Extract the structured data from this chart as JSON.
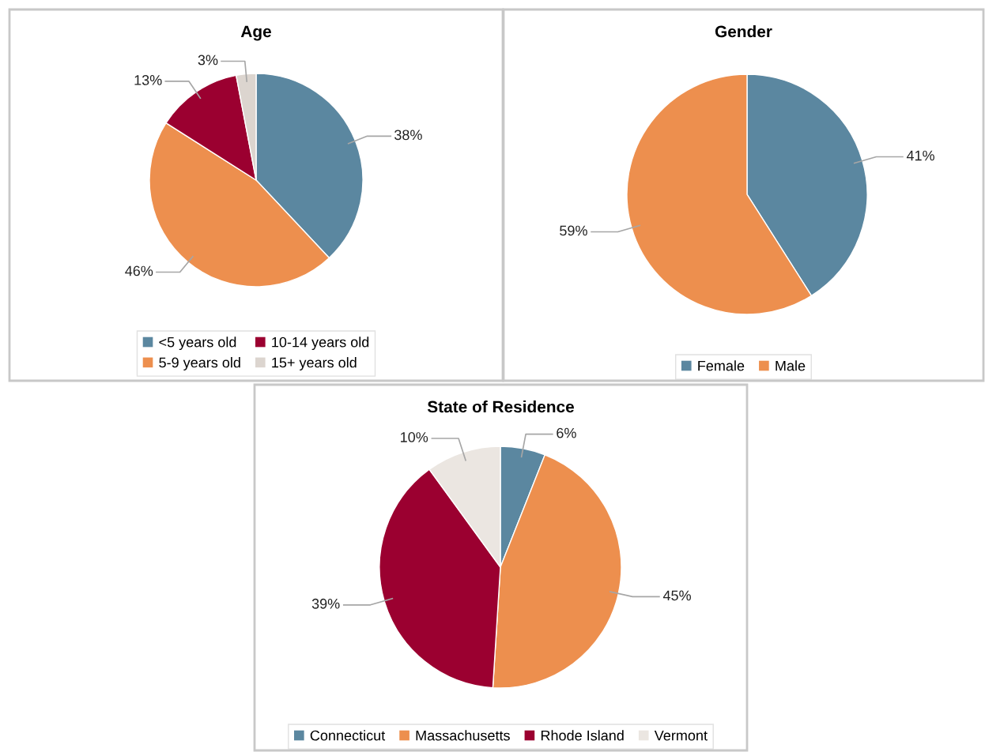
{
  "chart_data": [
    {
      "type": "pie",
      "title": "Age",
      "categories": [
        "<5 years old",
        "5-9 years old",
        "10-14 years old",
        "15+ years old"
      ],
      "values": [
        38,
        46,
        13,
        3
      ],
      "value_labels": [
        "38%",
        "46%",
        "13%",
        "3%"
      ],
      "colors": [
        "#5b87a0",
        "#ed8f4e",
        "#9b0030",
        "#dcd5cf"
      ],
      "legend": "bottom"
    },
    {
      "type": "pie",
      "title": "Gender",
      "categories": [
        "Female",
        "Male"
      ],
      "values": [
        41,
        59
      ],
      "value_labels": [
        "41%",
        "59%"
      ],
      "colors": [
        "#5b87a0",
        "#ed8f4e"
      ],
      "legend": "bottom"
    },
    {
      "type": "pie",
      "title": "State of Residence",
      "categories": [
        "Connecticut",
        "Massachusetts",
        "Rhode Island",
        "Vermont"
      ],
      "values": [
        6,
        45,
        39,
        10
      ],
      "value_labels": [
        "6%",
        "45%",
        "39%",
        "10%"
      ],
      "colors": [
        "#5b87a0",
        "#ed8f4e",
        "#9b0030",
        "#ebe6e1"
      ],
      "legend": "bottom"
    }
  ]
}
